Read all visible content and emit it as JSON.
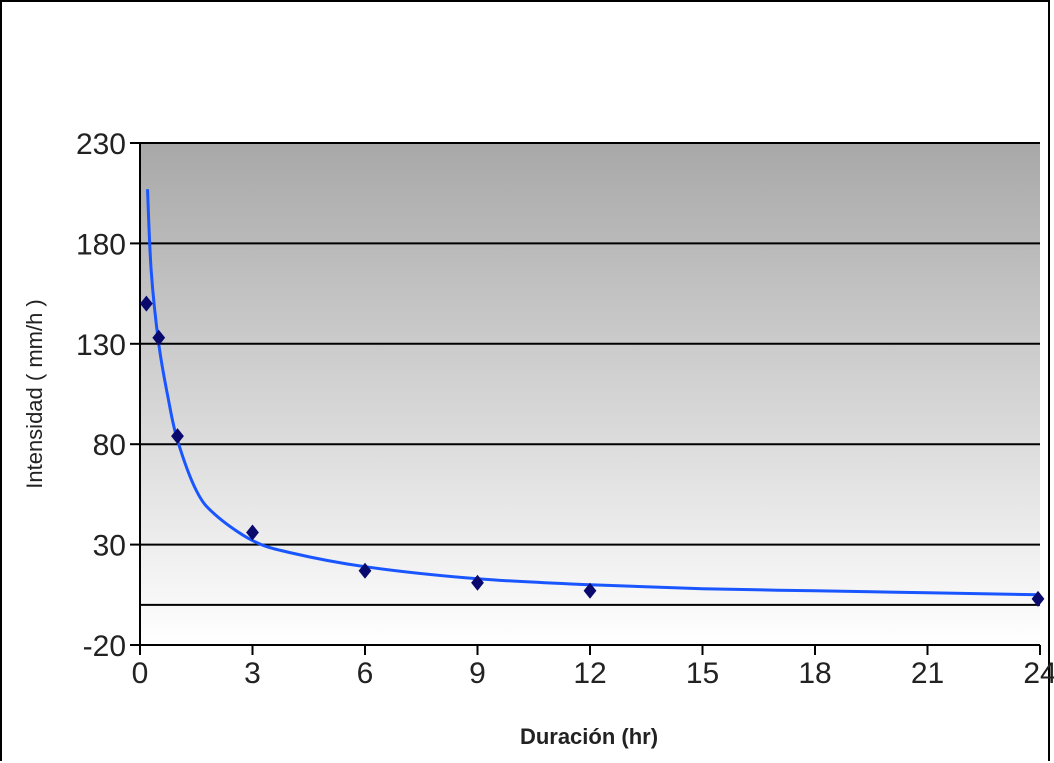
{
  "chart_data": {
    "type": "scatter",
    "title": "",
    "xlabel": "Duración (hr)",
    "ylabel": "Intensidad ( mm/h )",
    "xlim": [
      0,
      24
    ],
    "ylim": [
      -20,
      230
    ],
    "x_ticks": [
      "0",
      "3",
      "6",
      "9",
      "12",
      "15",
      "18",
      "21",
      "24"
    ],
    "y_ticks": [
      "230",
      "180",
      "130",
      "80",
      "30",
      "-20"
    ],
    "grid": true,
    "legend": "none",
    "series": [
      {
        "kind": "points",
        "marker": "diamond",
        "color": "#0a0a6e",
        "x": [
          0.17,
          0.5,
          1,
          3,
          6,
          9,
          12,
          24
        ],
        "y": [
          150,
          133,
          84,
          36,
          17,
          11,
          7,
          3
        ]
      },
      {
        "kind": "trendline",
        "color": "#1a56ff",
        "x": [
          0.2,
          0.3,
          0.5,
          0.75,
          1,
          1.5,
          2,
          3,
          4,
          6,
          9,
          12,
          15,
          18,
          21,
          24
        ],
        "y": [
          207,
          166,
          130,
          103,
          82,
          57,
          45,
          32,
          26,
          19,
          13,
          10,
          8,
          7,
          6,
          5
        ]
      }
    ],
    "colors": {
      "plot_top": "#a8a8a8",
      "plot_bottom": "#ffffff",
      "gridline": "#000000",
      "axis": "#000000"
    }
  }
}
